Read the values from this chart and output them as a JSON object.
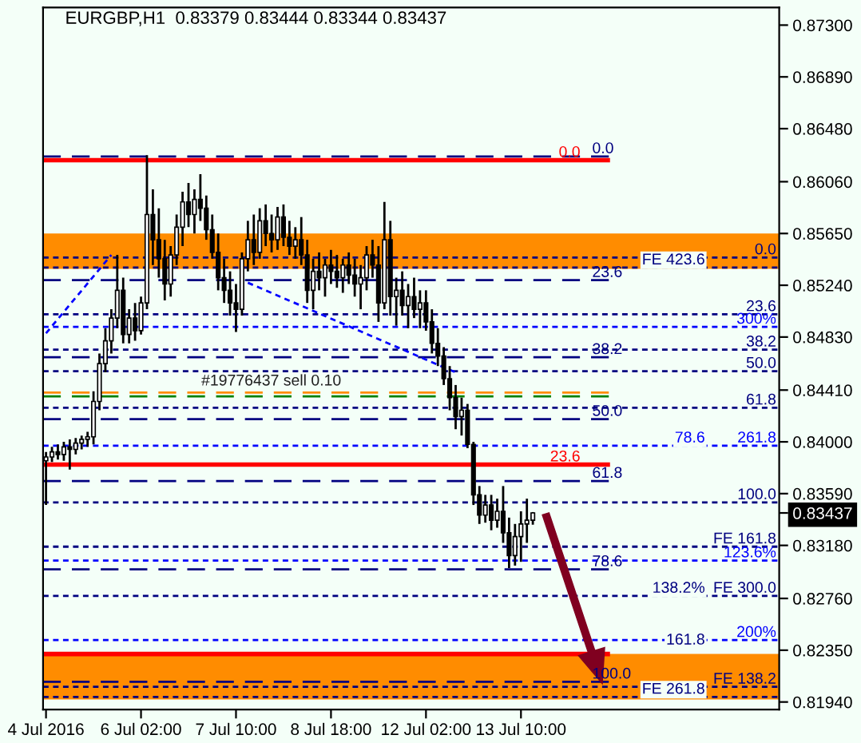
{
  "chart_data": {
    "type": "candlestick",
    "title": "EURGBP,H1  0.83379 0.83444 0.83344 0.83437",
    "categories": [
      "4 Jul 2016",
      null,
      null,
      null,
      null,
      null,
      null,
      null,
      null,
      null,
      null,
      null,
      null,
      null,
      null,
      null,
      "6 Jul 02:00",
      null,
      null,
      null,
      null,
      null,
      null,
      null,
      null,
      null,
      null,
      null,
      null,
      null,
      null,
      null,
      "7 Jul 10:00",
      null,
      null,
      null,
      null,
      null,
      null,
      null,
      null,
      null,
      null,
      null,
      null,
      null,
      null,
      null,
      "8 Jul 18:00",
      null,
      null,
      null,
      null,
      null,
      null,
      null,
      null,
      null,
      null,
      null,
      null,
      null,
      null,
      null,
      "12 Jul 02:00",
      null,
      null,
      null,
      null,
      null,
      null,
      null,
      null,
      null,
      null,
      null,
      null,
      null,
      null,
      null,
      "13 Jul 10:00",
      null,
      null,
      null,
      null,
      null,
      null,
      null,
      null,
      null,
      null,
      null,
      null,
      null,
      null,
      null,
      null,
      null,
      null,
      null,
      null,
      null,
      null,
      null,
      null,
      null,
      null,
      null,
      null,
      null,
      null,
      null,
      null,
      null,
      null,
      null,
      null,
      null,
      null,
      null,
      null,
      null,
      null,
      null
    ],
    "ohlc": [
      [
        0.8385,
        0.8392,
        0.835,
        0.8388
      ],
      [
        0.8388,
        0.8396,
        0.8384,
        0.8392
      ],
      [
        0.8392,
        0.8398,
        0.8386,
        0.839
      ],
      [
        0.839,
        0.84,
        0.8385,
        0.8396
      ],
      [
        0.8396,
        0.8402,
        0.8378,
        0.8394
      ],
      [
        0.8394,
        0.8403,
        0.839,
        0.8399
      ],
      [
        0.8399,
        0.8405,
        0.8394,
        0.8402
      ],
      [
        0.8402,
        0.8408,
        0.8396,
        0.8404
      ],
      [
        0.8404,
        0.844,
        0.8398,
        0.8432
      ],
      [
        0.8432,
        0.847,
        0.8425,
        0.8462
      ],
      [
        0.8462,
        0.849,
        0.8455,
        0.848
      ],
      [
        0.848,
        0.8505,
        0.847,
        0.8498
      ],
      [
        0.8498,
        0.8548,
        0.849,
        0.852
      ],
      [
        0.852,
        0.853,
        0.8478,
        0.8485
      ],
      [
        0.8485,
        0.8505,
        0.8478,
        0.8498
      ],
      [
        0.8498,
        0.851,
        0.848,
        0.8488
      ],
      [
        0.8488,
        0.8515,
        0.8485,
        0.851
      ],
      [
        0.851,
        0.8627,
        0.8505,
        0.858
      ],
      [
        0.858,
        0.86,
        0.854,
        0.856
      ],
      [
        0.856,
        0.8585,
        0.853,
        0.8545
      ],
      [
        0.8545,
        0.856,
        0.8512,
        0.8525
      ],
      [
        0.8525,
        0.8555,
        0.8515,
        0.8548
      ],
      [
        0.8548,
        0.858,
        0.854,
        0.857
      ],
      [
        0.857,
        0.8598,
        0.8555,
        0.859
      ],
      [
        0.859,
        0.8605,
        0.857,
        0.858
      ],
      [
        0.858,
        0.86,
        0.8565,
        0.8592
      ],
      [
        0.8592,
        0.8612,
        0.8575,
        0.8585
      ],
      [
        0.8585,
        0.8595,
        0.856,
        0.8568
      ],
      [
        0.8568,
        0.858,
        0.8545,
        0.855
      ],
      [
        0.855,
        0.8565,
        0.852,
        0.853
      ],
      [
        0.853,
        0.8545,
        0.851,
        0.852
      ],
      [
        0.852,
        0.8535,
        0.85,
        0.851
      ],
      [
        0.851,
        0.8525,
        0.8487,
        0.8505
      ],
      [
        0.8505,
        0.855,
        0.85,
        0.8545
      ],
      [
        0.8545,
        0.8575,
        0.8535,
        0.856
      ],
      [
        0.856,
        0.858,
        0.854,
        0.855
      ],
      [
        0.855,
        0.8585,
        0.8545,
        0.8575
      ],
      [
        0.8575,
        0.8588,
        0.8555,
        0.8565
      ],
      [
        0.8565,
        0.858,
        0.855,
        0.856
      ],
      [
        0.856,
        0.8586,
        0.8552,
        0.8578
      ],
      [
        0.8578,
        0.8588,
        0.8555,
        0.8562
      ],
      [
        0.8562,
        0.8575,
        0.8548,
        0.8555
      ],
      [
        0.8555,
        0.857,
        0.8545,
        0.856
      ],
      [
        0.856,
        0.8578,
        0.854,
        0.8548
      ],
      [
        0.8548,
        0.856,
        0.851,
        0.852
      ],
      [
        0.852,
        0.8545,
        0.8505,
        0.8535
      ],
      [
        0.8535,
        0.855,
        0.852,
        0.853
      ],
      [
        0.853,
        0.8545,
        0.8515,
        0.854
      ],
      [
        0.854,
        0.8552,
        0.8525,
        0.8535
      ],
      [
        0.8535,
        0.8548,
        0.8522,
        0.853
      ],
      [
        0.853,
        0.8545,
        0.8518,
        0.854
      ],
      [
        0.854,
        0.855,
        0.8525,
        0.8532
      ],
      [
        0.8532,
        0.8545,
        0.8515,
        0.8525
      ],
      [
        0.8525,
        0.854,
        0.8505,
        0.853
      ],
      [
        0.853,
        0.8555,
        0.852,
        0.8548
      ],
      [
        0.8548,
        0.856,
        0.853,
        0.854
      ],
      [
        0.854,
        0.8555,
        0.8495,
        0.851
      ],
      [
        0.851,
        0.859,
        0.8505,
        0.856
      ],
      [
        0.856,
        0.8575,
        0.85,
        0.8515
      ],
      [
        0.8515,
        0.853,
        0.8492,
        0.852
      ],
      [
        0.852,
        0.8535,
        0.85,
        0.8508
      ],
      [
        0.8508,
        0.8525,
        0.849,
        0.8515
      ],
      [
        0.8515,
        0.853,
        0.8498,
        0.8505
      ],
      [
        0.8505,
        0.852,
        0.849,
        0.851
      ],
      [
        0.851,
        0.852,
        0.8488,
        0.8495
      ],
      [
        0.8495,
        0.8505,
        0.847,
        0.8478
      ],
      [
        0.8478,
        0.849,
        0.846,
        0.8468
      ],
      [
        0.8468,
        0.8475,
        0.8445,
        0.845
      ],
      [
        0.845,
        0.846,
        0.8425,
        0.8435
      ],
      [
        0.8435,
        0.8445,
        0.841,
        0.842
      ],
      [
        0.842,
        0.8435,
        0.8405,
        0.8425
      ],
      [
        0.8425,
        0.843,
        0.8395,
        0.8398
      ],
      [
        0.8398,
        0.84,
        0.835,
        0.8358
      ],
      [
        0.8358,
        0.8365,
        0.8335,
        0.8342
      ],
      [
        0.8342,
        0.8358,
        0.8336,
        0.835
      ],
      [
        0.835,
        0.8358,
        0.833,
        0.8338
      ],
      [
        0.8338,
        0.8355,
        0.8332,
        0.8345
      ],
      [
        0.8345,
        0.8365,
        0.832,
        0.8328
      ],
      [
        0.8328,
        0.834,
        0.83,
        0.831
      ],
      [
        0.831,
        0.8335,
        0.8302,
        0.8325
      ],
      [
        0.8325,
        0.8345,
        0.8305,
        0.8335
      ],
      [
        0.8335,
        0.8355,
        0.832,
        0.8338
      ],
      [
        0.83379,
        0.83444,
        0.83344,
        0.83437
      ],
      null,
      null,
      null,
      null,
      null,
      null,
      null,
      null,
      null,
      null,
      null,
      null,
      null,
      null,
      null,
      null,
      null,
      null,
      null,
      null,
      null,
      null,
      null,
      null,
      null,
      null,
      null,
      null,
      null,
      null,
      null,
      null,
      null,
      null,
      null,
      null,
      null,
      null,
      null,
      null,
      null
    ],
    "series": [
      {
        "type": "line",
        "color": "#0000ff",
        "line_style": "dotted",
        "values": [
          0.8486,
          null,
          null,
          null,
          null,
          null,
          null,
          null,
          null,
          null,
          null,
          0.8548,
          null,
          null,
          null,
          null,
          null,
          null,
          null,
          null,
          null,
          null,
          null,
          null,
          null,
          null,
          null,
          null,
          null,
          null,
          null,
          null,
          null,
          null,
          null,
          null,
          null,
          null,
          null,
          null,
          null,
          null,
          null,
          null,
          null,
          null,
          null,
          null,
          null,
          null,
          null,
          null,
          null,
          null,
          null,
          null,
          null,
          null,
          null,
          null,
          null,
          null,
          null,
          null,
          null,
          null,
          null,
          null,
          null,
          null,
          null,
          null,
          null,
          null,
          null,
          null,
          null,
          null,
          null,
          null,
          null,
          null,
          null,
          null,
          null,
          null,
          null,
          null,
          null,
          null,
          null,
          null,
          null,
          null,
          null,
          null,
          null,
          null,
          null,
          null,
          null,
          null,
          null,
          null,
          null,
          null,
          null,
          null,
          null,
          null,
          null,
          null,
          null,
          null,
          null,
          null,
          null,
          null,
          null,
          null,
          null,
          null,
          null,
          null
        ]
      },
      {
        "type": "line",
        "color": "#0000ff",
        "line_style": "dotted",
        "values": [
          null,
          null,
          null,
          null,
          null,
          null,
          null,
          null,
          null,
          null,
          null,
          null,
          null,
          null,
          null,
          null,
          null,
          null,
          null,
          null,
          null,
          null,
          null,
          null,
          null,
          null,
          null,
          null,
          null,
          null,
          null,
          null,
          null,
          null,
          0.8526,
          null,
          null,
          null,
          null,
          null,
          null,
          null,
          null,
          null,
          null,
          null,
          null,
          null,
          null,
          null,
          null,
          null,
          null,
          null,
          null,
          null,
          null,
          null,
          null,
          null,
          null,
          null,
          null,
          null,
          null,
          null,
          null,
          null,
          null,
          0.8455,
          null,
          null,
          null,
          null,
          null,
          null,
          null,
          null,
          null,
          null,
          null,
          null,
          null,
          null,
          null,
          null,
          null,
          null,
          null,
          null,
          null,
          null,
          null,
          null,
          null,
          null,
          null,
          null,
          null,
          null,
          null,
          null,
          null,
          null,
          null,
          null,
          null,
          null,
          null,
          null,
          null,
          null,
          null,
          null,
          null,
          null,
          null,
          null,
          null,
          null,
          null,
          null,
          null,
          null
        ]
      }
    ],
    "ylim": [
      0.8188,
      0.8744
    ],
    "yticks": [
      {
        "value": 0.873,
        "label": "0.87300"
      },
      {
        "value": 0.8689,
        "label": "0.86890"
      },
      {
        "value": 0.8648,
        "label": "0.86480"
      },
      {
        "value": 0.8606,
        "label": "0.86060"
      },
      {
        "value": 0.8565,
        "label": "0.85650"
      },
      {
        "value": 0.8524,
        "label": "0.85240"
      },
      {
        "value": 0.8483,
        "label": "0.84830"
      },
      {
        "value": 0.8441,
        "label": "0.84410"
      },
      {
        "value": 0.84,
        "label": "0.84000"
      },
      {
        "value": 0.8359,
        "label": "0.83590"
      },
      {
        "value": 0.8318,
        "label": "0.83180"
      },
      {
        "value": 0.8276,
        "label": "0.82760"
      },
      {
        "value": 0.8235,
        "label": "0.82350"
      },
      {
        "value": 0.8194,
        "label": "0.81940"
      },
      {
        "value": 0.83437,
        "label": "0.83437"
      }
    ],
    "bands": [
      {
        "axis": "y",
        "from": 0.8537,
        "to": 0.8565,
        "color": "#ff8c00"
      },
      {
        "axis": "y",
        "from": 0.8196,
        "to": 0.8232,
        "color": "#ff8c00"
      }
    ],
    "ref_lines": [
      {
        "axis": "y",
        "value": 0.8626,
        "color": "#000080",
        "line_style": "dashed"
      },
      {
        "axis": "y",
        "value": 0.8623,
        "color": "#ff0000",
        "line_style": "solid"
      },
      {
        "axis": "y",
        "value": 0.8546,
        "color": "#000080",
        "line_style": "dotted"
      },
      {
        "axis": "y",
        "value": 0.8538,
        "color": "#000080",
        "line_style": "dotted"
      },
      {
        "axis": "y",
        "value": 0.8528,
        "color": "#000080",
        "line_style": "dashed"
      },
      {
        "axis": "y",
        "value": 0.8501,
        "color": "#000080",
        "line_style": "dotted"
      },
      {
        "axis": "y",
        "value": 0.8491,
        "color": "#0000ff",
        "line_style": "dotted"
      },
      {
        "axis": "y",
        "value": 0.8473,
        "color": "#000080",
        "line_style": "dotted"
      },
      {
        "axis": "y",
        "value": 0.8467,
        "color": "#000080",
        "line_style": "dashed"
      },
      {
        "axis": "y",
        "value": 0.8456,
        "color": "#000080",
        "line_style": "dotted"
      },
      {
        "axis": "y",
        "value": 0.8439,
        "color": "#ff8c00",
        "line_style": "dashed"
      },
      {
        "axis": "y",
        "value": 0.8436,
        "color": "#008000",
        "line_style": "dashed"
      },
      {
        "axis": "y",
        "value": 0.8427,
        "color": "#000080",
        "line_style": "dotted"
      },
      {
        "axis": "y",
        "value": 0.8418,
        "color": "#000080",
        "line_style": "dashed"
      },
      {
        "axis": "y",
        "value": 0.8397,
        "color": "#0000ff",
        "line_style": "dotted"
      },
      {
        "axis": "y",
        "value": 0.8382,
        "color": "#ff0000",
        "line_style": "solid"
      },
      {
        "axis": "y",
        "value": 0.8369,
        "color": "#000080",
        "line_style": "dashed"
      },
      {
        "axis": "y",
        "value": 0.8352,
        "color": "#000080",
        "line_style": "dotted"
      },
      {
        "axis": "y",
        "value": 0.8317,
        "color": "#000080",
        "line_style": "dotted"
      },
      {
        "axis": "y",
        "value": 0.8306,
        "color": "#0000ff",
        "line_style": "dotted"
      },
      {
        "axis": "y",
        "value": 0.8299,
        "color": "#000080",
        "line_style": "dashed"
      },
      {
        "axis": "y",
        "value": 0.8278,
        "color": "#000080",
        "line_style": "dotted"
      },
      {
        "axis": "y",
        "value": 0.8243,
        "color": "#0000ff",
        "line_style": "dotted"
      },
      {
        "axis": "y",
        "value": 0.8232,
        "color": "#ff0000",
        "line_style": "solid"
      },
      {
        "axis": "y",
        "value": 0.821,
        "color": "#000080",
        "line_style": "dashed"
      },
      {
        "axis": "y",
        "value": 0.8206,
        "color": "#000080",
        "line_style": "dotted"
      },
      {
        "axis": "y",
        "value": 0.8198,
        "color": "#000080",
        "line_style": "dotted"
      }
    ],
    "annotations": [
      "#19776437 sell 0.10",
      {
        "text": "0.0",
        "y": 0.8626
      },
      {
        "text": "0.0",
        "y": 0.8623
      },
      {
        "text": "0.0",
        "y": 0.8546
      },
      {
        "text": "FE 423.6",
        "y": 0.8538
      },
      {
        "text": "23.6",
        "y": 0.8528
      },
      {
        "text": "23.6",
        "y": 0.8501
      },
      {
        "text": "300%",
        "y": 0.8491
      },
      {
        "text": "38.2",
        "y": 0.8473
      },
      {
        "text": "38.2",
        "y": 0.8467
      },
      {
        "text": "50.0",
        "y": 0.8456
      },
      {
        "text": "61.8",
        "y": 0.8427
      },
      {
        "text": "50.0",
        "y": 0.8418
      },
      {
        "text": "261.8",
        "y": 0.8397
      },
      {
        "text": "78.6",
        "y": 0.8397
      },
      {
        "text": "23.6",
        "y": 0.8382
      },
      {
        "text": "61.8",
        "y": 0.8369
      },
      {
        "text": "100.0",
        "y": 0.8352
      },
      {
        "text": "FE 161.8",
        "y": 0.8317
      },
      {
        "text": "123.6%",
        "y": 0.8306
      },
      {
        "text": "78.6",
        "y": 0.8299
      },
      {
        "text": "FE 300.0",
        "y": 0.8278
      },
      {
        "text": "138.2%",
        "y": 0.8278
      },
      {
        "text": "200%",
        "y": 0.8243
      },
      {
        "text": "161.8",
        "y": 0.8237
      },
      {
        "text": "100.0",
        "y": 0.821
      },
      {
        "text": "FE 138.2",
        "y": 0.8206
      },
      {
        "text": "FE 261.8",
        "y": 0.8198
      }
    ],
    "grid": false
  }
}
